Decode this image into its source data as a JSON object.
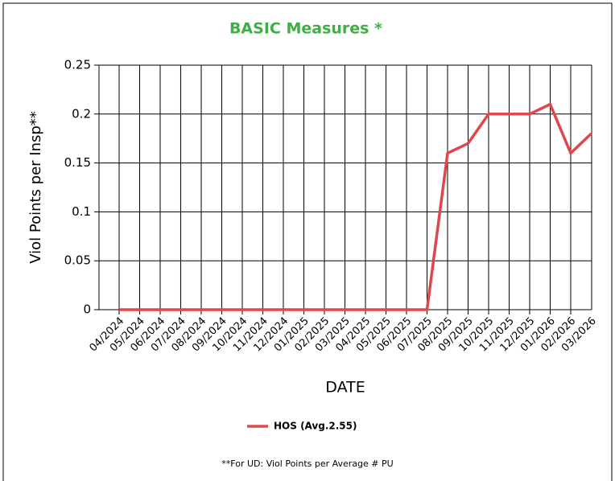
{
  "chart_data": {
    "type": "line",
    "title": "BASIC Measures *",
    "x_label": "DATE",
    "y_label": "Viol Points per Insp**",
    "categories": [
      "04/2024",
      "05/2024",
      "06/2024",
      "07/2024",
      "08/2024",
      "09/2024",
      "10/2024",
      "11/2024",
      "12/2024",
      "01/2025",
      "02/2025",
      "03/2025",
      "04/2025",
      "05/2025",
      "06/2025",
      "07/2025",
      "08/2025",
      "09/2025",
      "10/2025",
      "11/2025",
      "12/2025",
      "01/2026",
      "02/2026",
      "03/2026"
    ],
    "series": [
      {
        "name": "HOS (Avg.2.55)",
        "color": "#e0474c",
        "values": [
          0,
          0,
          0,
          0,
          0,
          0,
          0,
          0,
          0,
          0,
          0,
          0,
          0,
          0,
          0,
          0,
          0.16,
          0.17,
          0.2,
          0.2,
          0.2,
          0.21,
          0.16,
          0.18
        ]
      }
    ],
    "ylim": [
      0,
      0.25
    ],
    "yticks": [
      0,
      0.05,
      0.1,
      0.15,
      0.2,
      0.25
    ],
    "grid": true,
    "footnote": "**For UD: Viol Points per Average # PU"
  }
}
